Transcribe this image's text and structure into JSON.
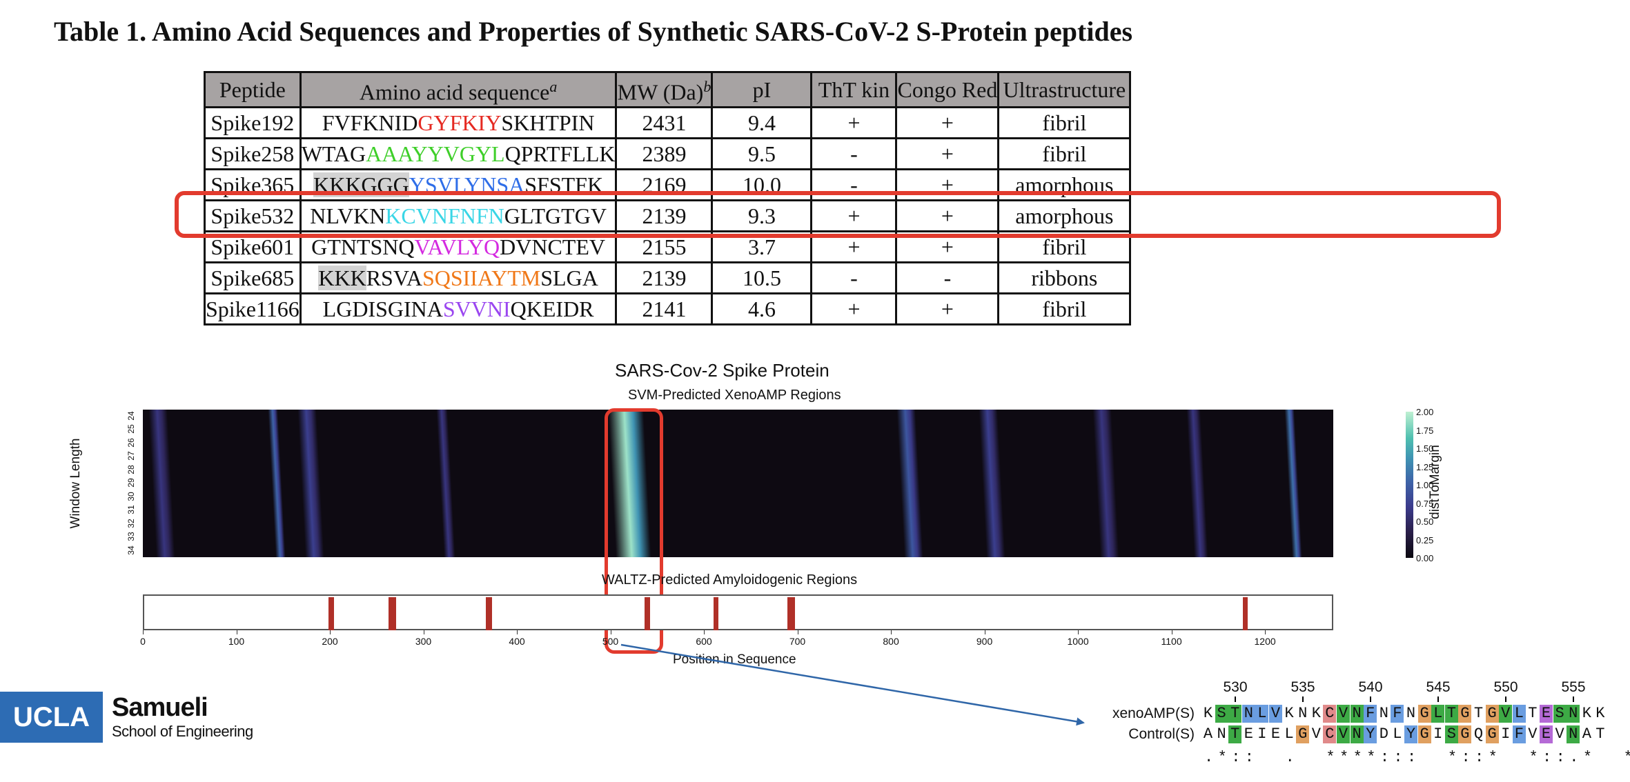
{
  "title": "Table 1. Amino Acid Sequences and Properties of Synthetic SARS-CoV-2 S-Protein peptides",
  "table": {
    "headers": [
      "Peptide",
      "Amino acid sequence",
      "MW (Da)",
      "pI",
      "ThT kin",
      "Congo Red",
      "Ultrastructure"
    ],
    "header_superscripts": {
      "sequence": "a",
      "mw": "b"
    },
    "rows": [
      {
        "peptide": "Spike192",
        "seq": [
          {
            "t": "FVFKNID",
            "c": "#111111",
            "bg": ""
          },
          {
            "t": "GYFKIY",
            "c": "#e52a22",
            "bg": ""
          },
          {
            "t": "SKHTPIN",
            "c": "#111111",
            "bg": ""
          }
        ],
        "mw": "2431",
        "pi": "9.4",
        "tht": "+",
        "congo": "+",
        "ultra": "fibril"
      },
      {
        "peptide": "Spike258",
        "seq": [
          {
            "t": "WTAG",
            "c": "#111111",
            "bg": ""
          },
          {
            "t": "AAAYYVGYL",
            "c": "#3fcf2a",
            "bg": ""
          },
          {
            "t": "QPRTFLLK",
            "c": "#111111",
            "bg": ""
          }
        ],
        "mw": "2389",
        "pi": "9.5",
        "tht": "-",
        "congo": "+",
        "ultra": "fibril"
      },
      {
        "peptide": "Spike365",
        "seq": [
          {
            "t": "KKKGGG",
            "c": "#111111",
            "bg": "grey"
          },
          {
            "t": "YSVLYNSA",
            "c": "#2f6ee8",
            "bg": ""
          },
          {
            "t": "SFSTFK",
            "c": "#111111",
            "bg": ""
          }
        ],
        "mw": "2169",
        "pi": "10.0",
        "tht": "-",
        "congo": "+",
        "ultra": "amorphous"
      },
      {
        "peptide": "Spike532",
        "seq": [
          {
            "t": "NLVKN",
            "c": "#111111",
            "bg": ""
          },
          {
            "t": "KCVNFNFN",
            "c": "#3ad6e6",
            "bg": ""
          },
          {
            "t": "GLTGTGV",
            "c": "#111111",
            "bg": ""
          }
        ],
        "mw": "2139",
        "pi": "9.3",
        "tht": "+",
        "congo": "+",
        "ultra": "amorphous"
      },
      {
        "peptide": "Spike601",
        "seq": [
          {
            "t": "GTNTSNQ",
            "c": "#111111",
            "bg": ""
          },
          {
            "t": "VAVLYQ",
            "c": "#d42ae0",
            "bg": ""
          },
          {
            "t": "DVNCTEV",
            "c": "#111111",
            "bg": ""
          }
        ],
        "mw": "2155",
        "pi": "3.7",
        "tht": "+",
        "congo": "+",
        "ultra": "fibril"
      },
      {
        "peptide": "Spike685",
        "seq": [
          {
            "t": "KKK",
            "c": "#111111",
            "bg": "grey"
          },
          {
            "t": "RSVA",
            "c": "#111111",
            "bg": ""
          },
          {
            "t": "SQSIIAYTM",
            "c": "#f07818",
            "bg": ""
          },
          {
            "t": "SLGA",
            "c": "#111111",
            "bg": ""
          }
        ],
        "mw": "2139",
        "pi": "10.5",
        "tht": "-",
        "congo": "-",
        "ultra": "ribbons"
      },
      {
        "peptide": "Spike1166",
        "seq": [
          {
            "t": "LGDISGINA",
            "c": "#111111",
            "bg": ""
          },
          {
            "t": "SVVNI",
            "c": "#9a46f0",
            "bg": ""
          },
          {
            "t": "QKEIDR",
            "c": "#111111",
            "bg": ""
          }
        ],
        "mw": "2141",
        "pi": "4.6",
        "tht": "+",
        "congo": "+",
        "ultra": "fibril"
      }
    ],
    "highlight_color": "#e23b2e"
  },
  "figure": {
    "main_title": "SARS-Cov-2 Spike Protein",
    "svm_title": "SVM-Predicted XenoAMP Regions",
    "waltz_title": "WALTZ-Predicted Amyloidogenic Regions",
    "ylabel": "Window Length",
    "yticks": [
      "24",
      "25",
      "26",
      "27",
      "28",
      "29",
      "30",
      "31",
      "32",
      "33",
      "34"
    ],
    "xlabel": "Position in Sequence",
    "xticks": [
      "0",
      "100",
      "200",
      "300",
      "400",
      "500",
      "600",
      "700",
      "800",
      "900",
      "1000",
      "1100",
      "1200"
    ],
    "colorbar_label": "distToMargin",
    "colorbar_ticks": [
      "2.00",
      "1.75",
      "1.50",
      "1.25",
      "1.00",
      "0.75",
      "0.50",
      "0.25",
      "0.00"
    ]
  },
  "chart_data": {
    "type": "heatmap",
    "title": "SVM-Predicted XenoAMP Regions",
    "xlabel": "Position in Sequence",
    "ylabel": "Window Length",
    "xlim": [
      0,
      1273
    ],
    "ylim": [
      24,
      34
    ],
    "colorbar": {
      "label": "distToMargin",
      "range": [
        0,
        2.0
      ]
    },
    "svm_regions": [
      {
        "start": 10,
        "end": 30,
        "level": 0.6
      },
      {
        "start": 138,
        "end": 148,
        "level": 1.0
      },
      {
        "start": 170,
        "end": 190,
        "level": 0.7
      },
      {
        "start": 318,
        "end": 330,
        "level": 0.6
      },
      {
        "start": 502,
        "end": 540,
        "level": 1.9
      },
      {
        "start": 810,
        "end": 830,
        "level": 0.9
      },
      {
        "start": 898,
        "end": 918,
        "level": 0.7
      },
      {
        "start": 1020,
        "end": 1040,
        "level": 0.6
      },
      {
        "start": 1120,
        "end": 1135,
        "level": 0.6
      },
      {
        "start": 1225,
        "end": 1235,
        "level": 1.1
      }
    ],
    "waltz_regions": [
      {
        "start": 197,
        "end": 203
      },
      {
        "start": 261,
        "end": 269
      },
      {
        "start": 365,
        "end": 372
      },
      {
        "start": 535,
        "end": 541
      },
      {
        "start": 609,
        "end": 614
      },
      {
        "start": 688,
        "end": 696
      },
      {
        "start": 1175,
        "end": 1180
      }
    ]
  },
  "alignment": {
    "positions": [
      "530",
      "535",
      "540",
      "545",
      "550",
      "555"
    ],
    "position_index": [
      2,
      7,
      12,
      17,
      22,
      27
    ],
    "names": [
      "xenoAMP(S)",
      "Control(S)"
    ],
    "xeno": "KSTNLVKNKCVNFNFNGLTGTGVLTESNKK",
    "control": "ANTEIELGVCVNYDLYGISGQGIFVEVNAT",
    "conservation": ".*::  .  ****:::  *::*  *::.*  * .",
    "xeno_colors": [
      "",
      "#3daa45",
      "#3daa45",
      "#6a9de0",
      "#6a9de0",
      "#6a9de0",
      "",
      "",
      "",
      "#e08a8a",
      "#3daa45",
      "#3daa45",
      "#6a9de0",
      "",
      "#6a9de0",
      "",
      "#e0a060",
      "#3daa45",
      "#3daa45",
      "#e0a060",
      "",
      "#e0a060",
      "#3daa45",
      "#6a9de0",
      "",
      "#b56ad6",
      "#3daa45",
      "#3daa45",
      "",
      ""
    ],
    "control_colors": [
      "",
      "",
      "#3daa45",
      "",
      "",
      "",
      "",
      "#e0a060",
      "",
      "#e08a8a",
      "#3daa45",
      "#3daa45",
      "#6a9de0",
      "",
      "",
      "#6a9de0",
      "#e0a060",
      "",
      "#3daa45",
      "#e0a060",
      "",
      "#e0a060",
      "",
      "#6a9de0",
      "",
      "#b56ad6",
      "",
      "#3daa45",
      "",
      ""
    ]
  },
  "logo": {
    "mark": "UCLA",
    "name": "Samueli",
    "sub": "School of Engineering"
  }
}
